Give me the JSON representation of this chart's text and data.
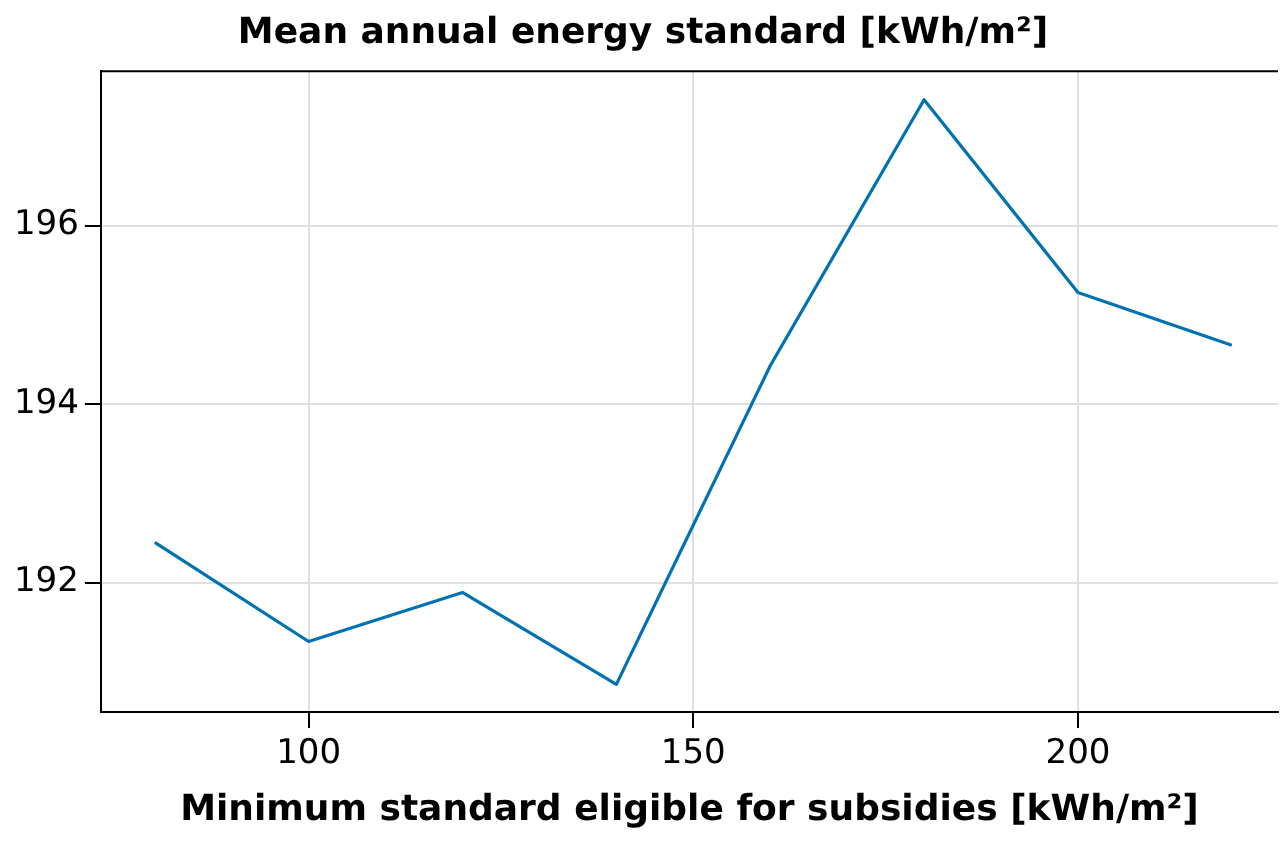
{
  "chart_data": {
    "type": "line",
    "title": "Mean annual energy standard [kWh/m²]",
    "xlabel": "Minimum standard eligible for subsidies [kWh/m²]",
    "x": [
      80,
      100,
      120,
      140,
      160,
      180,
      200,
      220
    ],
    "series": [
      {
        "color": "#0072b2",
        "values": [
          192.45,
          191.34,
          191.89,
          190.86,
          194.43,
          197.41,
          195.25,
          194.66
        ]
      }
    ],
    "xlim": [
      73,
      226
    ],
    "xticks": [
      100,
      150,
      200
    ],
    "ylim": [
      190.55,
      197.73
    ],
    "yticks": [
      192,
      194,
      196
    ],
    "grid": true,
    "legend": false,
    "marker": "none",
    "line_style": "solid"
  }
}
